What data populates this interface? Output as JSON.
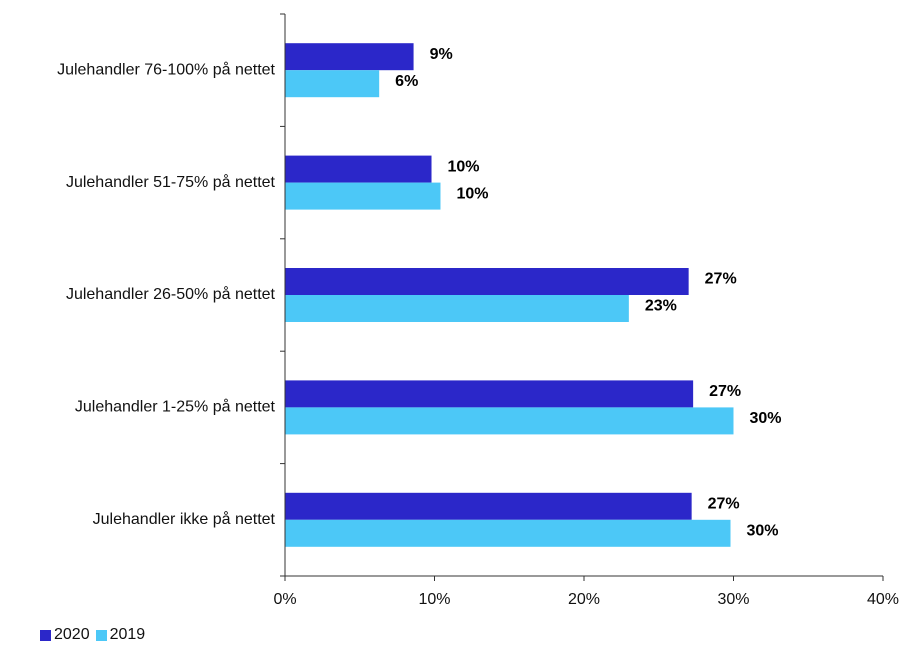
{
  "chart_data": {
    "type": "bar",
    "orientation": "horizontal",
    "categories": [
      "Julehandler 76-100% på nettet",
      "Julehandler 51-75% på nettet",
      "Julehandler 26-50% på nettet",
      "Julehandler 1-25% på nettet",
      "Julehandler ikke på nettet"
    ],
    "series": [
      {
        "name": "2020",
        "color": "#2b27c9",
        "values": [
          8.6,
          9.8,
          27.0,
          27.3,
          27.2
        ],
        "labels": [
          "9%",
          "10%",
          "27%",
          "27%",
          "27%"
        ]
      },
      {
        "name": "2019",
        "color": "#4cc8f7",
        "values": [
          6.3,
          10.4,
          23.0,
          30.0,
          29.8
        ],
        "labels": [
          "6%",
          "10%",
          "23%",
          "30%",
          "30%"
        ]
      }
    ],
    "xlim": [
      0,
      40
    ],
    "xticks": [
      0,
      10,
      20,
      30,
      40
    ],
    "xtick_labels": [
      "0%",
      "10%",
      "20%",
      "30%",
      "40%"
    ],
    "grid": false,
    "legend_position": "bottom-left"
  }
}
